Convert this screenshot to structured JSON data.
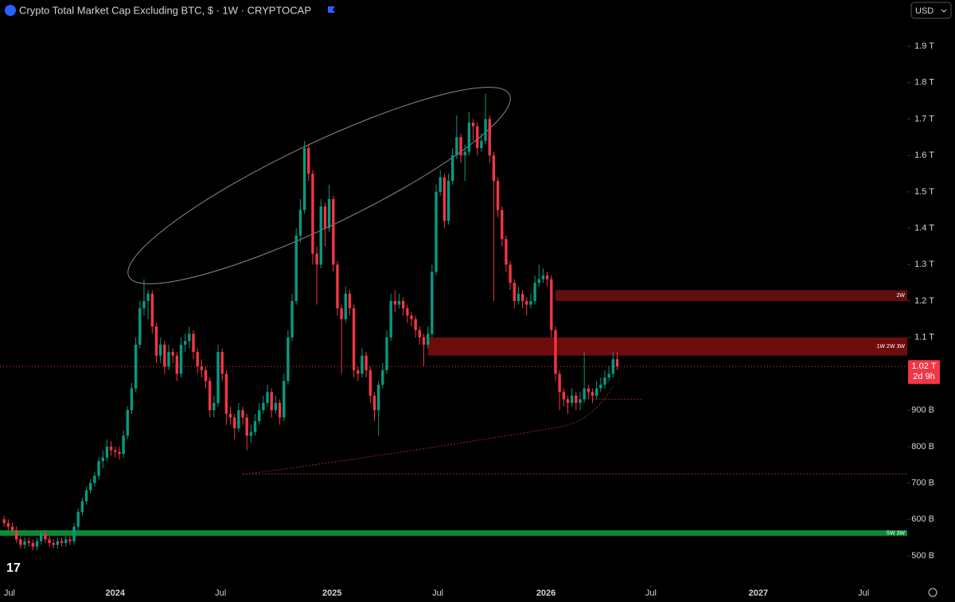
{
  "chart_data": {
    "type": "candlestick",
    "title": "Crypto Total Market Cap Excluding BTC, $ · 1W · CRYPTOCAP",
    "currency": "USD",
    "up_color": "#089981",
    "down_color": "#f23645",
    "ylim": [
      419,
      2027
    ],
    "yticks": [
      {
        "value": 500,
        "label": "500 B"
      },
      {
        "value": 600,
        "label": "600 B"
      },
      {
        "value": 700,
        "label": "700 B"
      },
      {
        "value": 800,
        "label": "800 B"
      },
      {
        "value": 900,
        "label": "900 B"
      },
      {
        "value": 1100,
        "label": "1.1 T"
      },
      {
        "value": 1200,
        "label": "1.2 T"
      },
      {
        "value": 1300,
        "label": "1.3 T"
      },
      {
        "value": 1400,
        "label": "1.4 T"
      },
      {
        "value": 1500,
        "label": "1.5 T"
      },
      {
        "value": 1600,
        "label": "1.6 T"
      },
      {
        "value": 1700,
        "label": "1.7 T"
      },
      {
        "value": 1800,
        "label": "1.8 T"
      },
      {
        "value": 1900,
        "label": "1.9 T"
      }
    ],
    "xlim": [
      -1,
      219.5
    ],
    "xticks": [
      {
        "value": 1.3,
        "label": "Jul"
      },
      {
        "value": 27,
        "label": "2024"
      },
      {
        "value": 52.6,
        "label": "Jul"
      },
      {
        "value": 79.7,
        "label": "2025"
      },
      {
        "value": 105.4,
        "label": "Jul"
      },
      {
        "value": 131.7,
        "label": "2026"
      },
      {
        "value": 157.2,
        "label": "Jul"
      },
      {
        "value": 183.3,
        "label": "2027"
      },
      {
        "value": 208.9,
        "label": "Jul"
      }
    ],
    "last_price": {
      "value": 1020,
      "label": "1.02 T",
      "countdown": "2d 9h"
    },
    "zones": [
      {
        "label": "2W",
        "low": 1200,
        "high": 1230,
        "from": 134,
        "color": "#6b0f0f"
      },
      {
        "label": "1W 2W 3W",
        "low": 1050,
        "high": 1100,
        "from": 103,
        "color": "#7a0c0c"
      },
      {
        "label": "5W 3W",
        "low": 555,
        "high": 570,
        "from": -1,
        "color": "#0a9b3a"
      }
    ],
    "levels": [
      {
        "value": 725,
        "from": 58
      },
      {
        "value": 930,
        "from": 143,
        "to": 155
      }
    ],
    "candles": [
      [
        600,
        610,
        580,
        590
      ],
      [
        590,
        600,
        570,
        580
      ],
      [
        580,
        590,
        560,
        570
      ],
      [
        570,
        580,
        535,
        545
      ],
      [
        545,
        555,
        520,
        530
      ],
      [
        530,
        550,
        520,
        540
      ],
      [
        540,
        550,
        525,
        535
      ],
      [
        535,
        545,
        515,
        525
      ],
      [
        525,
        550,
        515,
        540
      ],
      [
        540,
        570,
        530,
        560
      ],
      [
        560,
        570,
        535,
        545
      ],
      [
        545,
        555,
        525,
        535
      ],
      [
        535,
        545,
        520,
        530
      ],
      [
        530,
        550,
        520,
        540
      ],
      [
        540,
        550,
        525,
        535
      ],
      [
        535,
        555,
        525,
        545
      ],
      [
        545,
        555,
        530,
        540
      ],
      [
        540,
        590,
        530,
        580
      ],
      [
        580,
        630,
        570,
        620
      ],
      [
        620,
        660,
        610,
        650
      ],
      [
        650,
        690,
        640,
        680
      ],
      [
        680,
        710,
        670,
        700
      ],
      [
        700,
        730,
        690,
        720
      ],
      [
        720,
        770,
        710,
        760
      ],
      [
        760,
        790,
        740,
        770
      ],
      [
        770,
        820,
        760,
        800
      ],
      [
        800,
        815,
        775,
        790
      ],
      [
        790,
        800,
        770,
        785
      ],
      [
        785,
        800,
        765,
        780
      ],
      [
        780,
        845,
        770,
        830
      ],
      [
        830,
        910,
        820,
        900
      ],
      [
        900,
        975,
        890,
        960
      ],
      [
        960,
        1100,
        950,
        1080
      ],
      [
        1080,
        1200,
        1070,
        1180
      ],
      [
        1180,
        1260,
        1160,
        1200
      ],
      [
        1200,
        1230,
        1150,
        1220
      ],
      [
        1220,
        1230,
        1110,
        1130
      ],
      [
        1130,
        1140,
        1030,
        1050
      ],
      [
        1050,
        1100,
        1030,
        1080
      ],
      [
        1080,
        1090,
        1000,
        1020
      ],
      [
        1020,
        1080,
        1010,
        1060
      ],
      [
        1060,
        1070,
        1030,
        1050
      ],
      [
        1050,
        1060,
        980,
        1000
      ],
      [
        1000,
        1100,
        990,
        1080
      ],
      [
        1080,
        1110,
        1060,
        1090
      ],
      [
        1090,
        1130,
        1070,
        1110
      ],
      [
        1110,
        1120,
        1040,
        1060
      ],
      [
        1060,
        1070,
        1000,
        1020
      ],
      [
        1020,
        1040,
        990,
        1010
      ],
      [
        1010,
        1020,
        960,
        980
      ],
      [
        980,
        990,
        880,
        900
      ],
      [
        900,
        940,
        880,
        920
      ],
      [
        920,
        1080,
        910,
        1060
      ],
      [
        1060,
        1070,
        980,
        1000
      ],
      [
        1000,
        1010,
        860,
        890
      ],
      [
        890,
        910,
        860,
        880
      ],
      [
        880,
        890,
        820,
        850
      ],
      [
        850,
        920,
        840,
        900
      ],
      [
        900,
        910,
        860,
        880
      ],
      [
        880,
        890,
        790,
        830
      ],
      [
        830,
        860,
        810,
        840
      ],
      [
        840,
        890,
        830,
        870
      ],
      [
        870,
        920,
        860,
        900
      ],
      [
        900,
        940,
        890,
        920
      ],
      [
        920,
        970,
        910,
        950
      ],
      [
        950,
        960,
        880,
        900
      ],
      [
        900,
        940,
        890,
        920
      ],
      [
        920,
        930,
        860,
        880
      ],
      [
        880,
        1000,
        870,
        980
      ],
      [
        980,
        1120,
        970,
        1100
      ],
      [
        1100,
        1220,
        1090,
        1200
      ],
      [
        1200,
        1400,
        1190,
        1380
      ],
      [
        1380,
        1480,
        1360,
        1450
      ],
      [
        1450,
        1640,
        1440,
        1620
      ],
      [
        1620,
        1630,
        1530,
        1550
      ],
      [
        1550,
        1560,
        1300,
        1330
      ],
      [
        1330,
        1350,
        1190,
        1300
      ],
      [
        1300,
        1480,
        1290,
        1460
      ],
      [
        1460,
        1470,
        1350,
        1400
      ],
      [
        1400,
        1520,
        1390,
        1480
      ],
      [
        1480,
        1490,
        1280,
        1300
      ],
      [
        1300,
        1310,
        1160,
        1180
      ],
      [
        1180,
        1190,
        1000,
        1150
      ],
      [
        1150,
        1240,
        1140,
        1220
      ],
      [
        1220,
        1230,
        1160,
        1180
      ],
      [
        1180,
        1190,
        990,
        1010
      ],
      [
        1010,
        1020,
        980,
        1000
      ],
      [
        1000,
        1070,
        990,
        1050
      ],
      [
        1050,
        1060,
        990,
        1010
      ],
      [
        1010,
        1020,
        920,
        940
      ],
      [
        940,
        950,
        870,
        900
      ],
      [
        900,
        980,
        830,
        970
      ],
      [
        970,
        1030,
        960,
        1010
      ],
      [
        1010,
        1120,
        1000,
        1100
      ],
      [
        1100,
        1220,
        1090,
        1200
      ],
      [
        1200,
        1230,
        1170,
        1190
      ],
      [
        1190,
        1220,
        1180,
        1200
      ],
      [
        1200,
        1210,
        1160,
        1180
      ],
      [
        1180,
        1190,
        1140,
        1160
      ],
      [
        1160,
        1170,
        1130,
        1150
      ],
      [
        1150,
        1160,
        1100,
        1120
      ],
      [
        1120,
        1130,
        1080,
        1100
      ],
      [
        1100,
        1110,
        1020,
        1080
      ],
      [
        1080,
        1130,
        1070,
        1110
      ],
      [
        1110,
        1300,
        1100,
        1280
      ],
      [
        1280,
        1520,
        1270,
        1500
      ],
      [
        1500,
        1560,
        1490,
        1540
      ],
      [
        1540,
        1550,
        1400,
        1420
      ],
      [
        1420,
        1550,
        1410,
        1530
      ],
      [
        1530,
        1620,
        1520,
        1600
      ],
      [
        1600,
        1710,
        1590,
        1650
      ],
      [
        1650,
        1660,
        1580,
        1600
      ],
      [
        1600,
        1630,
        1530,
        1610
      ],
      [
        1610,
        1720,
        1600,
        1690
      ],
      [
        1690,
        1700,
        1640,
        1680
      ],
      [
        1680,
        1690,
        1600,
        1620
      ],
      [
        1620,
        1660,
        1610,
        1640
      ],
      [
        1640,
        1770,
        1630,
        1700
      ],
      [
        1700,
        1710,
        1580,
        1600
      ],
      [
        1600,
        1610,
        1200,
        1530
      ],
      [
        1530,
        1540,
        1430,
        1450
      ],
      [
        1450,
        1460,
        1350,
        1370
      ],
      [
        1370,
        1380,
        1280,
        1300
      ],
      [
        1300,
        1310,
        1230,
        1250
      ],
      [
        1250,
        1260,
        1180,
        1200
      ],
      [
        1200,
        1240,
        1190,
        1220
      ],
      [
        1220,
        1230,
        1180,
        1200
      ],
      [
        1200,
        1210,
        1160,
        1190
      ],
      [
        1190,
        1220,
        1180,
        1200
      ],
      [
        1200,
        1270,
        1190,
        1250
      ],
      [
        1250,
        1300,
        1240,
        1260
      ],
      [
        1260,
        1290,
        1250,
        1270
      ],
      [
        1270,
        1280,
        1240,
        1260
      ],
      [
        1260,
        1270,
        1100,
        1120
      ],
      [
        1120,
        1130,
        980,
        1000
      ],
      [
        1000,
        1010,
        900,
        950
      ],
      [
        950,
        960,
        910,
        930
      ],
      [
        930,
        940,
        890,
        920
      ],
      [
        920,
        960,
        910,
        940
      ],
      [
        940,
        950,
        900,
        920
      ],
      [
        920,
        950,
        900,
        930
      ],
      [
        930,
        1060,
        920,
        960
      ],
      [
        960,
        970,
        930,
        950
      ],
      [
        950,
        960,
        920,
        940
      ],
      [
        940,
        980,
        930,
        960
      ],
      [
        960,
        990,
        950,
        970
      ],
      [
        970,
        1010,
        960,
        990
      ],
      [
        990,
        1020,
        980,
        1000
      ],
      [
        1000,
        1060,
        990,
        1040
      ],
      [
        1040,
        1060,
        1010,
        1020
      ]
    ]
  }
}
